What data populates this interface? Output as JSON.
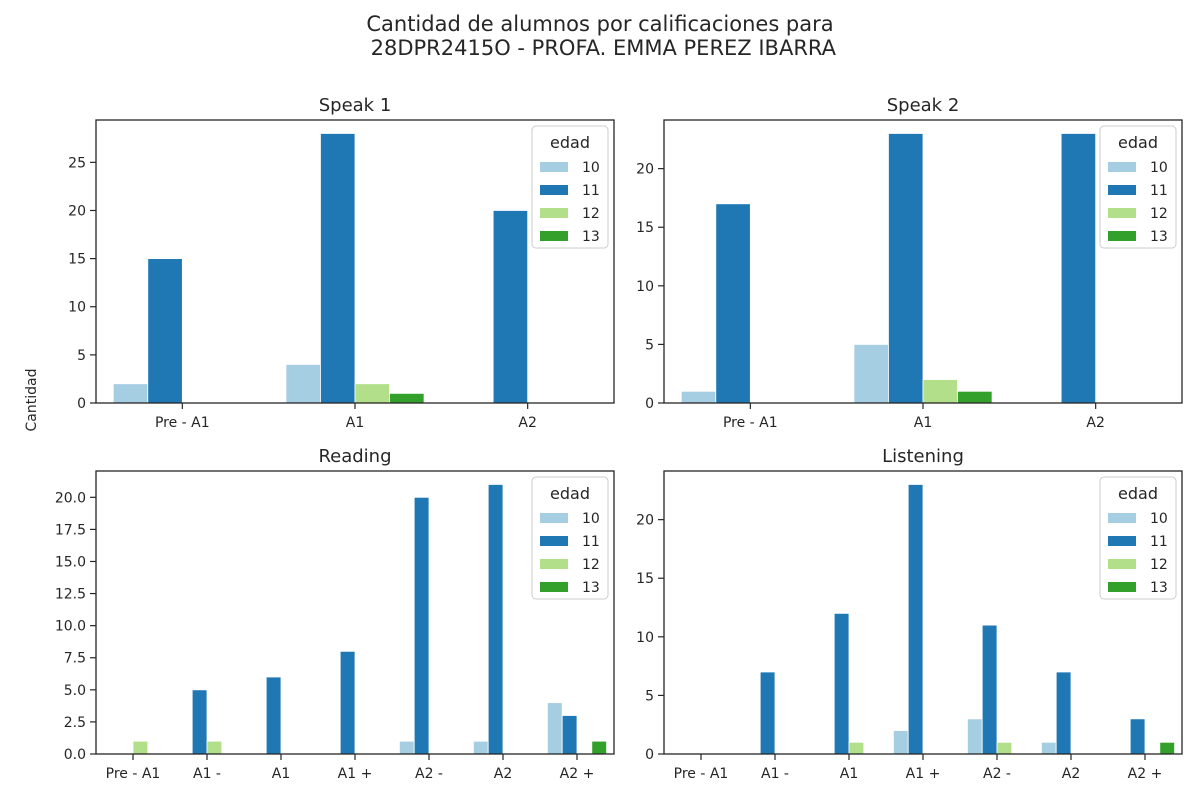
{
  "title_lines": [
    "Cantidad de alumnos por calificaciones para",
    " 28DPR2415O - PROFA. EMMA PEREZ IBARRA"
  ],
  "ylabel": "Cantidad",
  "colors": {
    "10": "#a6cee3",
    "11": "#1f78b4",
    "12": "#b2df8a",
    "13": "#33a02c"
  },
  "chart_data": [
    {
      "type": "bar",
      "title": "Speak 1",
      "categories": [
        "Pre - A1",
        "A1",
        "A2"
      ],
      "legend_title": "edad",
      "legend_position": "top-right",
      "ylim": [
        0,
        29.4
      ],
      "yticks": [
        0,
        5,
        10,
        15,
        20,
        25
      ],
      "series": [
        {
          "name": "10",
          "values": [
            2,
            4,
            0
          ]
        },
        {
          "name": "11",
          "values": [
            15,
            28,
            20
          ]
        },
        {
          "name": "12",
          "values": [
            0,
            2,
            0
          ]
        },
        {
          "name": "13",
          "values": [
            0,
            1,
            0
          ]
        }
      ]
    },
    {
      "type": "bar",
      "title": "Speak 2",
      "categories": [
        "Pre - A1",
        "A1",
        "A2"
      ],
      "legend_title": "edad",
      "legend_position": "top-right",
      "ylim": [
        0,
        24.15
      ],
      "yticks": [
        0,
        5,
        10,
        15,
        20
      ],
      "series": [
        {
          "name": "10",
          "values": [
            1,
            5,
            0
          ]
        },
        {
          "name": "11",
          "values": [
            17,
            23,
            23
          ]
        },
        {
          "name": "12",
          "values": [
            0,
            2,
            0
          ]
        },
        {
          "name": "13",
          "values": [
            0,
            1,
            0
          ]
        }
      ]
    },
    {
      "type": "bar",
      "title": "Reading",
      "categories": [
        "Pre - A1",
        "A1 -",
        "A1",
        "A1 +",
        "A2 -",
        "A2",
        "A2 +"
      ],
      "legend_title": "edad",
      "legend_position": "top-right",
      "ylim": [
        0,
        22.05
      ],
      "yticks": [
        0.0,
        2.5,
        5.0,
        7.5,
        10.0,
        12.5,
        15.0,
        17.5,
        20.0
      ],
      "ytick_decimals": 1,
      "series": [
        {
          "name": "10",
          "values": [
            0,
            0,
            0,
            0,
            1,
            1,
            4
          ]
        },
        {
          "name": "11",
          "values": [
            0,
            5,
            6,
            8,
            20,
            21,
            3
          ]
        },
        {
          "name": "12",
          "values": [
            1,
            1,
            0,
            0,
            0,
            0,
            0
          ]
        },
        {
          "name": "13",
          "values": [
            0,
            0,
            0,
            0,
            0,
            0,
            1
          ]
        }
      ]
    },
    {
      "type": "bar",
      "title": "Listening",
      "categories": [
        "Pre - A1",
        "A1 -",
        "A1",
        "A1 +",
        "A2 -",
        "A2",
        "A2 +"
      ],
      "legend_title": "edad",
      "legend_position": "top-right",
      "ylim": [
        0,
        24.15
      ],
      "yticks": [
        0,
        5,
        10,
        15,
        20
      ],
      "series": [
        {
          "name": "10",
          "values": [
            0,
            0,
            0,
            2,
            3,
            1,
            0
          ]
        },
        {
          "name": "11",
          "values": [
            0,
            7,
            12,
            23,
            11,
            7,
            3
          ]
        },
        {
          "name": "12",
          "values": [
            0,
            0,
            1,
            0,
            1,
            0,
            0
          ]
        },
        {
          "name": "13",
          "values": [
            0,
            0,
            0,
            0,
            0,
            0,
            1
          ]
        }
      ]
    }
  ]
}
